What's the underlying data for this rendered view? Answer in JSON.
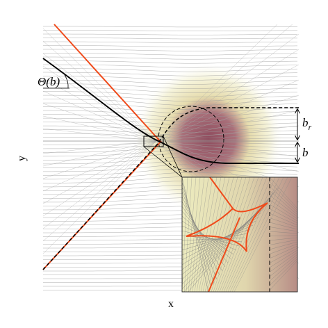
{
  "labels": {
    "theta": "Θ(b)",
    "br": {
      "base": "b",
      "sub": "r"
    },
    "b": "b",
    "x": "x",
    "y": "y"
  }
}
